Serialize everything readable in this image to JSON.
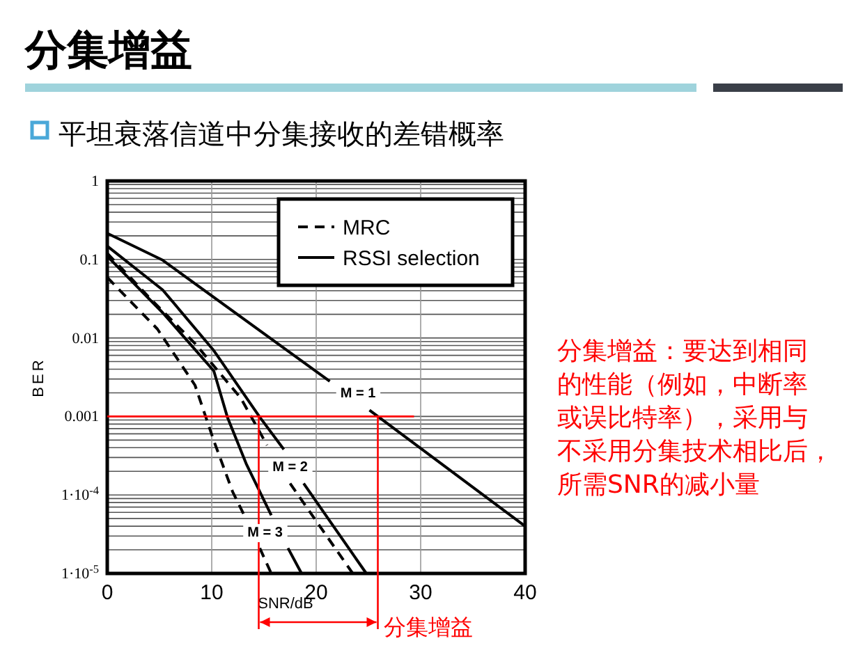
{
  "chart_data": {
    "type": "line",
    "title": "分集增益",
    "subtitle": "平坦衰落信道中分集接收的差错概率",
    "xlabel": "SNR/dB",
    "ylabel": "BER",
    "log": "y",
    "grid": true,
    "legend": "top right",
    "xlim": [
      0,
      40
    ],
    "xticks": [
      0,
      10,
      20,
      30,
      40
    ],
    "ylim": [
      1e-05,
      1
    ],
    "yticks": [
      1,
      0.1,
      0.01,
      0.001,
      {
        "value": 0.0001,
        "label": "1·10$^{-4}$"
      },
      {
        "value": 1e-05,
        "label": "1·10$^{-5}$"
      }
    ],
    "series": [
      {
        "name": "MRC",
        "color": "#000000",
        "line_style": "dashed",
        "x": [
          0,
          4.4,
          8.4,
          12.8,
          15.3,
          16.4,
          17.5,
          23.5
        ],
        "values": [
          0.12,
          0.029,
          0.0085,
          0.0017,
          0.00043,
          null,
          0.00014,
          1e-05
        ]
      },
      {
        "color": "#000000",
        "line_style": "dashed",
        "x": [
          0,
          4.8,
          8.4,
          10.2,
          12.0,
          13.3,
          14.0,
          14.6,
          15.7
        ],
        "values": [
          0.059,
          0.013,
          0.0025,
          0.00049,
          0.00011,
          4.9e-05,
          null,
          2.1e-05,
          1e-05
        ]
      },
      {
        "name": "RSSI selection",
        "color": "#000000",
        "line_style": "solid",
        "x": [
          0,
          5.3,
          21.3,
          23,
          25.1,
          40
        ],
        "values": [
          0.215,
          0.098,
          0.0028,
          null,
          0.0012,
          4e-05
        ]
      },
      {
        "color": "#000000",
        "line_style": "solid",
        "x": [
          0,
          5.3,
          10.2,
          14.6,
          16.9,
          17.8,
          18.8,
          24.8
        ],
        "values": [
          0.148,
          0.041,
          0.0069,
          0.00098,
          0.00038,
          null,
          0.00014,
          1e-05
        ]
      },
      {
        "color": "#000000",
        "line_style": "solid",
        "x": [
          0,
          5.3,
          10.2,
          11.5,
          13.3,
          15.7,
          16.5,
          17.3,
          18.6
        ],
        "values": [
          0.11,
          0.021,
          0.0038,
          0.00098,
          0.00025,
          5.5e-05,
          null,
          2.1e-05,
          1e-05
        ]
      }
    ],
    "ref_lines": [
      {
        "axis": "y",
        "value": 0.001,
        "color": "#ff0000"
      },
      {
        "axis": "x",
        "value": 14.5,
        "color": "#ff0000"
      },
      {
        "axis": "x",
        "value": 25.9,
        "color": "#ff0000"
      }
    ],
    "annotations": [
      {
        "text": "M = 1",
        "x": 24,
        "y": 0.002
      },
      {
        "text": "M = 2",
        "x": 17.5,
        "y": 0.00023
      },
      {
        "text": "M = 3",
        "x": 15.1,
        "y": 3.4e-05
      },
      "分集增益：要达到相同的性能（例如，中断率或误比特率），采用与不采用分集技术相比后，所需SNR的减小量",
      "分集增益"
    ]
  }
}
